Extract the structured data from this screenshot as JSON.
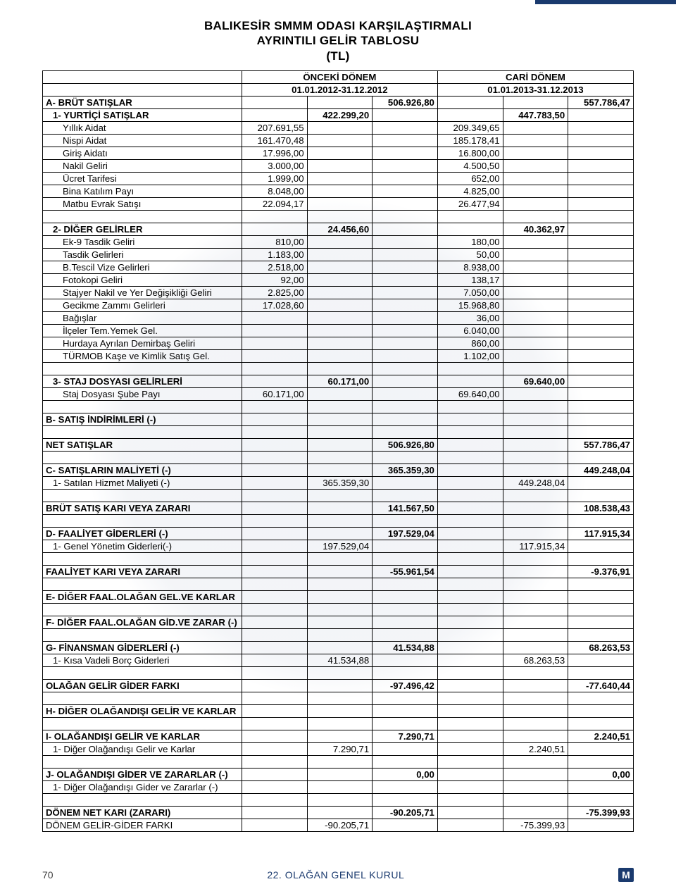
{
  "title_l1": "BALIKESİR SMMM ODASI KARŞILAŞTIRMALI",
  "title_l2": "AYRINTILI GELİR TABLOSU",
  "title_l3": "(TL)",
  "hdr_prev": "ÖNCEKİ DÖNEM",
  "hdr_curr": "CARİ DÖNEM",
  "prev_period": "01.01.2012-31.12.2012",
  "curr_period": "01.01.2013-31.12.2013",
  "rows": [
    {
      "bold": true,
      "label": "A- BRÜT SATIŞLAR",
      "c4": "506.926,80",
      "c7": "557.786,47"
    },
    {
      "bold": true,
      "indent": 1,
      "label": "1- YURTİÇİ SATIŞLAR",
      "c3": "422.299,20",
      "c6": "447.783,50"
    },
    {
      "indent": 2,
      "label": "Yıllık Aidat",
      "c2": "207.691,55",
      "c5": "209.349,65"
    },
    {
      "indent": 2,
      "label": "Nispi Aidat",
      "c2": "161.470,48",
      "c5": "185.178,41"
    },
    {
      "indent": 2,
      "label": "Giriş Aidatı",
      "c2": "17.996,00",
      "c5": "16.800,00"
    },
    {
      "indent": 2,
      "label": "Nakil Geliri",
      "c2": "3.000,00",
      "c5": "4.500,50"
    },
    {
      "indent": 2,
      "label": "Ücret Tarifesi",
      "c2": "1.999,00",
      "c5": "652,00"
    },
    {
      "indent": 2,
      "label": "Bina Katılım Payı",
      "c2": "8.048,00",
      "c5": "4.825,00"
    },
    {
      "indent": 2,
      "label": "Matbu Evrak Satışı",
      "c2": "22.094,17",
      "c5": "26.477,94"
    },
    {
      "blank": true
    },
    {
      "bold": true,
      "indent": 1,
      "label": "2- DİĞER GELİRLER",
      "c3": "24.456,60",
      "c6": "40.362,97"
    },
    {
      "indent": 2,
      "label": "Ek-9 Tasdik Geliri",
      "c2": "810,00",
      "c5": "180,00"
    },
    {
      "indent": 2,
      "label": "Tasdik Gelirleri",
      "c2": "1.183,00",
      "c5": "50,00"
    },
    {
      "indent": 2,
      "label": "B.Tescil Vize Gelirleri",
      "c2": "2.518,00",
      "c5": "8.938,00"
    },
    {
      "indent": 2,
      "label": "Fotokopi Geliri",
      "c2": "92,00",
      "c5": "138,17"
    },
    {
      "indent": 2,
      "label": "Stajyer Nakil ve Yer Değişikliği Geliri",
      "c2": "2.825,00",
      "c5": "7.050,00"
    },
    {
      "indent": 2,
      "label": "Gecikme Zammı Gelirleri",
      "c2": "17.028,60",
      "c5": "15.968,80"
    },
    {
      "indent": 2,
      "label": "Bağışlar",
      "c5": "36,00"
    },
    {
      "indent": 2,
      "label": "İlçeler Tem.Yemek Gel.",
      "c5": "6.040,00"
    },
    {
      "indent": 2,
      "label": "Hurdaya Ayrılan Demirbaş Geliri",
      "c5": "860,00"
    },
    {
      "indent": 2,
      "label": "TÜRMOB Kaşe ve Kimlik Satış Gel.",
      "c5": "1.102,00"
    },
    {
      "blank": true
    },
    {
      "bold": true,
      "indent": 1,
      "label": "3- STAJ DOSYASI GELİRLERİ",
      "c3": "60.171,00",
      "c6": "69.640,00"
    },
    {
      "indent": 2,
      "label": "Staj Dosyası Şube Payı",
      "c2": "60.171,00",
      "c5": "69.640,00"
    },
    {
      "blank": true
    },
    {
      "bold": true,
      "label": "B- SATIŞ İNDİRİMLERİ (-)"
    },
    {
      "blank": true
    },
    {
      "bold": true,
      "label": "NET SATIŞLAR",
      "c4": "506.926,80",
      "c7": "557.786,47"
    },
    {
      "blank": true
    },
    {
      "bold": true,
      "label": "C- SATIŞLARIN MALİYETİ (-)",
      "c4": "365.359,30",
      "c7": "449.248,04"
    },
    {
      "indent": 1,
      "label": "1- Satılan Hizmet Maliyeti (-)",
      "c3": "365.359,30",
      "c6": "449.248,04"
    },
    {
      "blank": true
    },
    {
      "bold": true,
      "label": "BRÜT SATIŞ KARI VEYA ZARARI",
      "c4": "141.567,50",
      "c7": "108.538,43"
    },
    {
      "blank": true
    },
    {
      "bold": true,
      "label": "D- FAALİYET GİDERLERİ (-)",
      "c4": "197.529,04",
      "c7": "117.915,34"
    },
    {
      "indent": 1,
      "label": "1- Genel Yönetim Giderleri(-)",
      "c3": "197.529,04",
      "c6": "117.915,34"
    },
    {
      "blank": true
    },
    {
      "bold": true,
      "label": "FAALİYET KARI VEYA ZARARI",
      "c4": "-55.961,54",
      "c7": "-9.376,91"
    },
    {
      "blank": true
    },
    {
      "bold": true,
      "label": "E- DİĞER FAAL.OLAĞAN GEL.VE KARLAR"
    },
    {
      "blank": true
    },
    {
      "bold": true,
      "label": "F- DİĞER FAAL.OLAĞAN GİD.VE ZARAR (-)"
    },
    {
      "blank": true
    },
    {
      "bold": true,
      "label": "G- FİNANSMAN GİDERLERİ (-)",
      "c4": "41.534,88",
      "c7": "68.263,53"
    },
    {
      "indent": 1,
      "label": "1- Kısa Vadeli Borç Giderleri",
      "c3": "41.534,88",
      "c6": "68.263,53"
    },
    {
      "blank": true
    },
    {
      "bold": true,
      "label": "OLAĞAN GELİR GİDER FARKI",
      "c4": "-97.496,42",
      "c7": "-77.640,44"
    },
    {
      "blank": true
    },
    {
      "bold": true,
      "label": "H- DİĞER OLAĞANDIŞI GELİR VE KARLAR"
    },
    {
      "blank": true
    },
    {
      "bold": true,
      "label": "I- OLAĞANDIŞI GELİR VE KARLAR",
      "c4": "7.290,71",
      "c7": "2.240,51"
    },
    {
      "indent": 1,
      "label": "1- Diğer Olağandışı Gelir ve Karlar",
      "c3": "7.290,71",
      "c6": "2.240,51"
    },
    {
      "blank": true
    },
    {
      "bold": true,
      "label": "J- OLAĞANDIŞI GİDER VE ZARARLAR (-)",
      "c4": "0,00",
      "c7": "0,00"
    },
    {
      "indent": 1,
      "label": "1- Diğer Olağandışı Gider ve Zararlar (-)"
    },
    {
      "blank": true
    },
    {
      "bold": true,
      "label": "DÖNEM NET KARI (ZARARI)",
      "c4": "-90.205,71",
      "c7": "-75.399,93"
    },
    {
      "label": "DÖNEM GELİR-GİDER FARKI",
      "c3": "-90.205,71",
      "c6": "-75.399,93"
    }
  ],
  "footer_page": "70",
  "footer_text": "22. OLAĞAN GENEL KURUL",
  "footer_logo": "M"
}
